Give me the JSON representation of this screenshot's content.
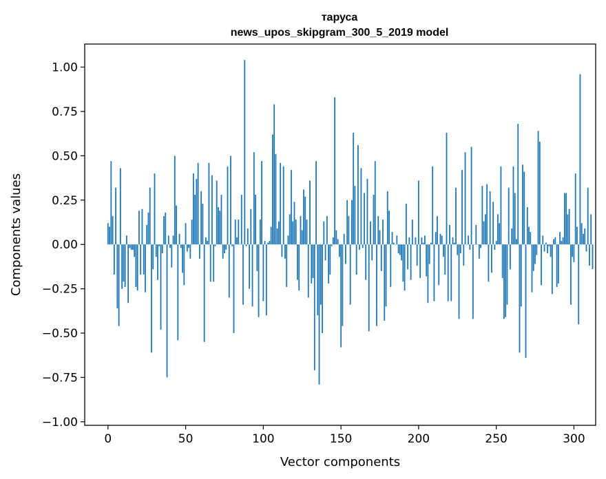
{
  "chart_data": {
    "type": "bar",
    "title_line1": "тарусa",
    "title_line2": "news_upos_skipgram_300_5_2019 model",
    "xlabel": "Vector components",
    "ylabel": "Components values",
    "xlim": [
      -15,
      314
    ],
    "ylim": [
      -1.02,
      1.13
    ],
    "xticks": [
      0,
      50,
      100,
      150,
      200,
      250,
      300
    ],
    "yticks": [
      -1.0,
      -0.75,
      -0.5,
      -0.25,
      0.0,
      0.25,
      0.5,
      0.75,
      1.0
    ],
    "ytick_labels": [
      "−1.00",
      "−0.75",
      "−0.50",
      "−0.25",
      "0.00",
      "0.25",
      "0.50",
      "0.75",
      "1.00"
    ],
    "xtick_labels": [
      "0",
      "50",
      "100",
      "150",
      "200",
      "250",
      "300"
    ],
    "bar_color": "#1f77b4",
    "values": [
      0.12,
      0.1,
      0.47,
      0.16,
      -0.17,
      0.32,
      -0.36,
      -0.46,
      0.43,
      -0.25,
      -0.21,
      -0.24,
      0.05,
      -0.33,
      -0.02,
      -0.03,
      -0.03,
      -0.07,
      -0.24,
      -0.26,
      0.19,
      -0.17,
      0.2,
      -0.17,
      -0.27,
      0.11,
      0.18,
      0.32,
      -0.61,
      -0.14,
      0.4,
      -0.07,
      -0.2,
      -0.01,
      -0.48,
      -0.05,
      0.16,
      0.18,
      -0.75,
      0.05,
      -0.02,
      -0.13,
      0.05,
      0.5,
      0.22,
      -0.54,
      0.06,
      -0.02,
      -0.16,
      -0.23,
      0.12,
      -0.04,
      -0.02,
      -0.08,
      0.14,
      0.4,
      0.28,
      0.37,
      0.46,
      -0.08,
      0.3,
      0.23,
      -0.55,
      0.04,
      0.02,
      0.46,
      -0.21,
      0.39,
      -0.21,
      -0.01,
      0.36,
      0.21,
      0.19,
      0.28,
      -0.08,
      -0.05,
      -0.03,
      0.44,
      -0.3,
      0.5,
      -0.01,
      -0.5,
      0.14,
      0.04,
      0.14,
      0.0,
      0.28,
      -0.34,
      1.04,
      -0.01,
      0.09,
      -0.25,
      0.2,
      -0.35,
      0.52,
      0.28,
      -0.15,
      -0.41,
      0.14,
      0.47,
      -0.32,
      0.02,
      -0.4,
      0.01,
      0.02,
      0.1,
      0.62,
      0.79,
      0.51,
      0.09,
      0.13,
      0.46,
      -0.07,
      0.44,
      -0.08,
      -0.24,
      0.05,
      0.17,
      0.42,
      0.13,
      0.24,
      0.14,
      -0.2,
      -0.26,
      0.16,
      0.08,
      0.31,
      0.27,
      0.14,
      -0.3,
      0.36,
      -0.22,
      -0.19,
      -0.71,
      0.47,
      -0.4,
      -0.79,
      -0.34,
      -0.5,
      0.13,
      -0.09,
      0.16,
      -0.22,
      -0.17,
      -0.01,
      0.04,
      0.83,
      0.08,
      0.03,
      -0.07,
      -0.58,
      -0.46,
      0.06,
      -0.11,
      0.25,
      0.16,
      -0.34,
      0.25,
      0.63,
      0.33,
      -0.17,
      0.56,
      -0.03,
      0.43,
      -0.02,
      0.29,
      -0.2,
      0.37,
      -0.49,
      0.13,
      -0.09,
      0.28,
      0.47,
      -0.46,
      0.16,
      0.08,
      -0.15,
      0.14,
      -0.43,
      -0.35,
      0.3,
      0.19,
      -0.24,
      0.07,
      0.01,
      0.0,
      0.05,
      -0.05,
      -0.06,
      -0.09,
      -0.21,
      -0.26,
      0.23,
      -0.14,
      0.04,
      -0.2,
      0.14,
      0.0,
      0.04,
      -0.12,
      0.36,
      -0.19,
      0.04,
      0.01,
      0.05,
      -0.18,
      -0.33,
      -0.11,
      0.01,
      0.44,
      -0.32,
      0.07,
      0.16,
      -0.23,
      0.06,
      0.05,
      -0.07,
      -0.17,
      0.63,
      -0.32,
      0.11,
      -0.32,
      0.04,
      0.01,
      0.32,
      -0.06,
      -0.42,
      -0.05,
      0.42,
      -0.12,
      0.52,
      0.0,
      0.05,
      -0.03,
      0.55,
      -0.42,
      0.0,
      0.11,
      0.0,
      -0.08,
      -0.02,
      0.33,
      0.13,
      0.17,
      0.34,
      -0.21,
      0.3,
      -0.16,
      0.24,
      -0.03,
      0.02,
      0.17,
      0.12,
      0.44,
      -0.19,
      -0.42,
      -0.41,
      -0.34,
      0.32,
      -0.14,
      0.09,
      0.44,
      0.29,
      0.03,
      0.68,
      -0.61,
      -0.35,
      0.45,
      0.41,
      -0.64,
      0.21,
      0.1,
      0.07,
      -0.27,
      -0.15,
      -0.11,
      -0.06,
      0.64,
      0.58,
      -0.23,
      0.05,
      -0.04,
      0.01,
      -0.05,
      -0.01,
      -0.07,
      -0.28,
      0.03,
      0.04,
      -0.24,
      -0.22,
      0.07,
      0.02,
      0.04,
      0.29,
      0.29,
      0.17,
      0.2,
      -0.34,
      -0.07,
      -0.1,
      0.4,
      0.1,
      -0.45,
      0.96,
      0.12,
      0.06,
      0.09,
      -0.04,
      0.32,
      -0.12,
      0.17,
      -0.14
    ]
  }
}
